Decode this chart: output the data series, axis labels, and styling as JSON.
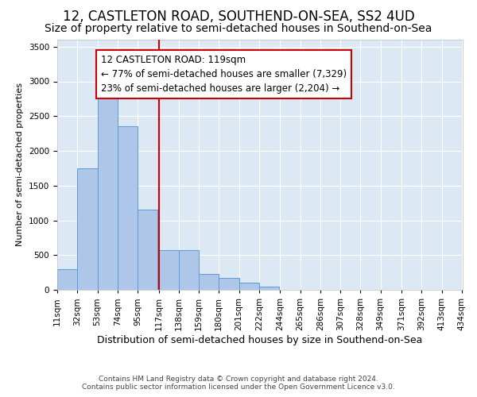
{
  "title": "12, CASTLETON ROAD, SOUTHEND-ON-SEA, SS2 4UD",
  "subtitle": "Size of property relative to semi-detached houses in Southend-on-Sea",
  "xlabel": "Distribution of semi-detached houses by size in Southend-on-Sea",
  "ylabel": "Number of semi-detached properties",
  "footnote1": "Contains HM Land Registry data © Crown copyright and database right 2024.",
  "footnote2": "Contains public sector information licensed under the Open Government Licence v3.0.",
  "bar_left_edges": [
    11,
    32,
    53,
    74,
    95,
    117,
    138,
    159,
    180,
    201,
    222,
    244,
    265,
    286,
    307,
    328,
    349,
    371,
    392,
    413
  ],
  "bar_widths": [
    21,
    21,
    21,
    21,
    21,
    21,
    21,
    21,
    21,
    21,
    21,
    21,
    21,
    21,
    21,
    21,
    21,
    21,
    21,
    21
  ],
  "bar_heights": [
    300,
    1750,
    3300,
    2350,
    1150,
    575,
    575,
    230,
    175,
    100,
    50,
    0,
    0,
    0,
    0,
    0,
    0,
    0,
    0,
    0
  ],
  "tick_labels": [
    "11sqm",
    "32sqm",
    "53sqm",
    "74sqm",
    "95sqm",
    "117sqm",
    "138sqm",
    "159sqm",
    "180sqm",
    "201sqm",
    "222sqm",
    "244sqm",
    "265sqm",
    "286sqm",
    "307sqm",
    "328sqm",
    "349sqm",
    "371sqm",
    "392sqm",
    "413sqm",
    "434sqm"
  ],
  "bar_color": "#aec6e8",
  "bar_edge_color": "#5b9bd5",
  "bg_color": "#dce9f5",
  "grid_color": "#ffffff",
  "property_line_x": 117,
  "property_line_color": "#cc0000",
  "annotation_text": "12 CASTLETON ROAD: 119sqm\n← 77% of semi-detached houses are smaller (7,329)\n23% of semi-detached houses are larger (2,204) →",
  "annotation_box_color": "#cc0000",
  "ylim": [
    0,
    3600
  ],
  "yticks": [
    0,
    500,
    1000,
    1500,
    2000,
    2500,
    3000,
    3500
  ],
  "title_fontsize": 12,
  "subtitle_fontsize": 10,
  "xlabel_fontsize": 9,
  "ylabel_fontsize": 8,
  "tick_fontsize": 7.5,
  "annotation_fontsize": 8.5
}
